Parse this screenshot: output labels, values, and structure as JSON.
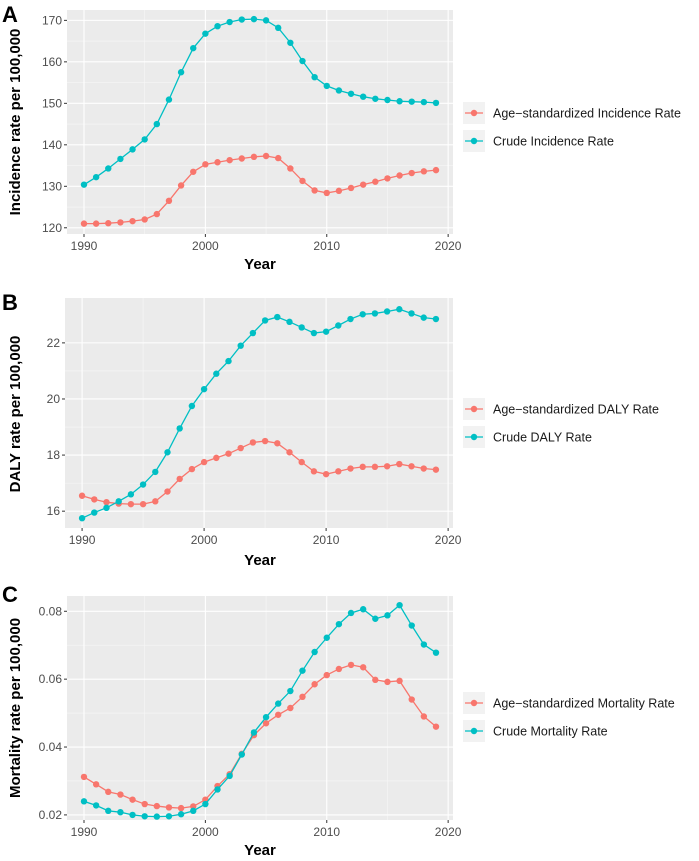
{
  "chart_data": [
    {
      "type": "line",
      "panel_label": "A",
      "title": "",
      "xlabel": "Year",
      "ylabel": "Incidence rate per 100,000",
      "xlim": [
        1988.6,
        2020.4
      ],
      "ylim": [
        118.5,
        172.5
      ],
      "xticks": [
        1990,
        2000,
        2010,
        2020
      ],
      "yticks": [
        120,
        130,
        140,
        150,
        160,
        170
      ],
      "grid": true,
      "legend_position": "right",
      "x": [
        1990,
        1991,
        1992,
        1993,
        1994,
        1995,
        1996,
        1997,
        1998,
        1999,
        2000,
        2001,
        2002,
        2003,
        2004,
        2005,
        2006,
        2007,
        2008,
        2009,
        2010,
        2011,
        2012,
        2013,
        2014,
        2015,
        2016,
        2017,
        2018,
        2019
      ],
      "series": [
        {
          "name": "Age−standardized Incidence Rate",
          "color": "#F8766D",
          "values": [
            121.0,
            121.0,
            121.1,
            121.3,
            121.6,
            122.0,
            123.3,
            126.5,
            130.2,
            133.5,
            135.3,
            135.8,
            136.3,
            136.7,
            137.1,
            137.3,
            136.8,
            134.3,
            131.3,
            129.0,
            128.4,
            128.9,
            129.6,
            130.4,
            131.1,
            131.9,
            132.6,
            133.2,
            133.6,
            133.9
          ]
        },
        {
          "name": "Crude Incidence Rate",
          "color": "#00BFC4",
          "values": [
            130.4,
            132.2,
            134.3,
            136.6,
            138.9,
            141.3,
            145.0,
            150.9,
            157.5,
            163.3,
            166.8,
            168.6,
            169.6,
            170.2,
            170.3,
            170.0,
            168.2,
            164.6,
            160.2,
            156.3,
            154.2,
            153.1,
            152.3,
            151.6,
            151.1,
            150.8,
            150.5,
            150.4,
            150.3,
            150.1
          ]
        }
      ]
    },
    {
      "type": "line",
      "panel_label": "B",
      "title": "",
      "xlabel": "Year",
      "ylabel": "DALY rate per 100,000",
      "xlim": [
        1988.6,
        2020.4
      ],
      "ylim": [
        15.4,
        23.6
      ],
      "xticks": [
        1990,
        2000,
        2010,
        2020
      ],
      "yticks": [
        16,
        18,
        20,
        22
      ],
      "grid": true,
      "legend_position": "right",
      "x": [
        1990,
        1991,
        1992,
        1993,
        1994,
        1995,
        1996,
        1997,
        1998,
        1999,
        2000,
        2001,
        2002,
        2003,
        2004,
        2005,
        2006,
        2007,
        2008,
        2009,
        2010,
        2011,
        2012,
        2013,
        2014,
        2015,
        2016,
        2017,
        2018,
        2019
      ],
      "series": [
        {
          "name": "Age−standardized DALY Rate",
          "color": "#F8766D",
          "values": [
            16.55,
            16.42,
            16.32,
            16.27,
            16.25,
            16.25,
            16.35,
            16.7,
            17.15,
            17.5,
            17.75,
            17.9,
            18.05,
            18.25,
            18.45,
            18.5,
            18.42,
            18.1,
            17.75,
            17.42,
            17.32,
            17.42,
            17.52,
            17.58,
            17.58,
            17.6,
            17.68,
            17.6,
            17.52,
            17.48
          ]
        },
        {
          "name": "Crude DALY Rate",
          "color": "#00BFC4",
          "values": [
            15.75,
            15.95,
            16.12,
            16.35,
            16.6,
            16.95,
            17.4,
            18.1,
            18.95,
            19.75,
            20.35,
            20.9,
            21.35,
            21.9,
            22.35,
            22.8,
            22.92,
            22.75,
            22.55,
            22.35,
            22.4,
            22.62,
            22.85,
            23.02,
            23.05,
            23.12,
            23.2,
            23.05,
            22.9,
            22.85
          ]
        }
      ]
    },
    {
      "type": "line",
      "panel_label": "C",
      "title": "",
      "xlabel": "Year",
      "ylabel": "Mortality rate per 100,000",
      "xlim": [
        1988.6,
        2020.4
      ],
      "ylim": [
        0.0185,
        0.0845
      ],
      "xticks": [
        1990,
        2000,
        2010,
        2020
      ],
      "yticks": [
        0.02,
        0.04,
        0.06,
        0.08
      ],
      "ytick_labels": [
        "0.02",
        "0.04",
        "0.06",
        "0.08"
      ],
      "grid": true,
      "legend_position": "right",
      "x": [
        1990,
        1991,
        1992,
        1993,
        1994,
        1995,
        1996,
        1997,
        1998,
        1999,
        2000,
        2001,
        2002,
        2003,
        2004,
        2005,
        2006,
        2007,
        2008,
        2009,
        2010,
        2011,
        2012,
        2013,
        2014,
        2015,
        2016,
        2017,
        2018,
        2019
      ],
      "series": [
        {
          "name": "Age−standardized Mortality Rate",
          "color": "#F8766D",
          "values": [
            0.0312,
            0.029,
            0.0268,
            0.026,
            0.0245,
            0.0232,
            0.0226,
            0.0222,
            0.022,
            0.0225,
            0.0245,
            0.0285,
            0.032,
            0.038,
            0.0435,
            0.047,
            0.0495,
            0.0515,
            0.0548,
            0.0585,
            0.0612,
            0.063,
            0.0642,
            0.0635,
            0.0598,
            0.0592,
            0.0595,
            0.054,
            0.049,
            0.046
          ]
        },
        {
          "name": "Crude Mortality Rate",
          "color": "#00BFC4",
          "values": [
            0.024,
            0.0228,
            0.0212,
            0.0208,
            0.02,
            0.0196,
            0.0195,
            0.0196,
            0.0202,
            0.0212,
            0.0232,
            0.0275,
            0.0315,
            0.0378,
            0.0443,
            0.0488,
            0.0528,
            0.0565,
            0.0625,
            0.068,
            0.0722,
            0.0762,
            0.0795,
            0.0806,
            0.0778,
            0.0788,
            0.0818,
            0.0758,
            0.0702,
            0.0678
          ]
        }
      ]
    }
  ]
}
